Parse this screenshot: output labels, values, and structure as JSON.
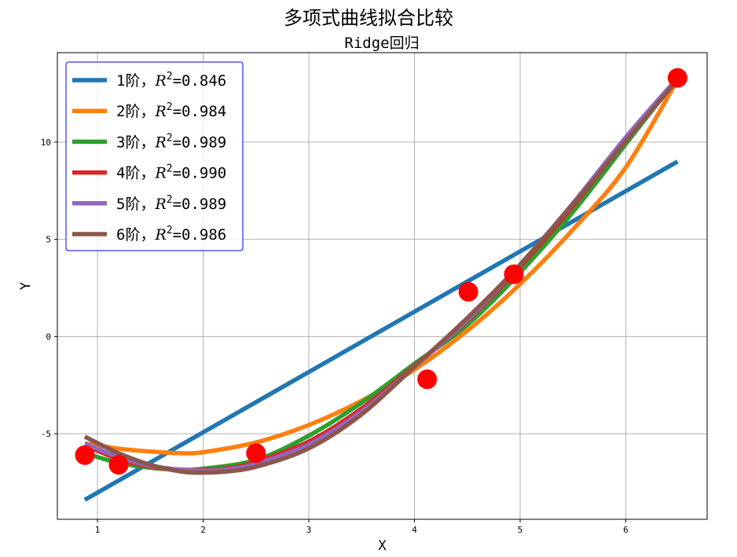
{
  "chart_data": {
    "type": "line",
    "title": "多项式曲线拟合比较",
    "subtitle": "Ridge回归",
    "xlabel": "X",
    "ylabel": "Y",
    "xlim": [
      0.62,
      6.77
    ],
    "ylim": [
      -9.4,
      14.6
    ],
    "xticks": [
      1,
      2,
      3,
      4,
      5,
      6
    ],
    "yticks": [
      -5,
      0,
      5,
      10
    ],
    "grid": true,
    "legend_position": "upper-left",
    "points": {
      "color": "#ff0000",
      "x": [
        0.88,
        1.2,
        2.5,
        4.12,
        4.51,
        4.94,
        6.49
      ],
      "y": [
        -6.1,
        -6.6,
        -6.0,
        -2.2,
        2.3,
        3.2,
        13.3
      ]
    },
    "series": [
      {
        "name": "1阶，",
        "r2": "0.846",
        "color": "#1f77b4",
        "x": [
          0.88,
          6.49
        ],
        "y": [
          -8.4,
          9.0
        ]
      },
      {
        "name": "2阶，",
        "r2": "0.984",
        "color": "#ff7f0e",
        "x": [
          0.88,
          1.25,
          1.6,
          1.8,
          2.0,
          2.5,
          3.0,
          3.5,
          4.0,
          4.5,
          5.0,
          5.5,
          6.0,
          6.49
        ],
        "y": [
          -5.5,
          -5.8,
          -5.95,
          -6.0,
          -5.95,
          -5.45,
          -4.55,
          -3.3,
          -1.7,
          0.3,
          2.7,
          5.5,
          8.7,
          13.2
        ]
      },
      {
        "name": "3阶，",
        "r2": "0.989",
        "color": "#2ca02c",
        "x": [
          0.88,
          1.2,
          1.5,
          1.8,
          2.0,
          2.5,
          3.0,
          3.5,
          4.0,
          4.5,
          5.0,
          5.5,
          6.0,
          6.49
        ],
        "y": [
          -6.0,
          -6.5,
          -6.75,
          -6.85,
          -6.8,
          -6.35,
          -5.1,
          -3.4,
          -1.4,
          0.6,
          3.3,
          6.4,
          9.9,
          13.3
        ]
      },
      {
        "name": "4阶，",
        "r2": "0.990",
        "color": "#d62728",
        "x": [
          0.88,
          1.2,
          1.5,
          1.8,
          2.0,
          2.2,
          2.5,
          3.0,
          3.5,
          4.0,
          4.5,
          5.0,
          5.5,
          6.0,
          6.49
        ],
        "y": [
          -5.6,
          -6.3,
          -6.7,
          -6.85,
          -6.85,
          -6.8,
          -6.45,
          -5.4,
          -3.7,
          -1.5,
          0.8,
          3.6,
          6.7,
          10.1,
          13.3
        ]
      },
      {
        "name": "5阶，",
        "r2": "0.989",
        "color": "#9467bd",
        "x": [
          0.88,
          1.2,
          1.5,
          1.8,
          2.0,
          2.2,
          2.5,
          3.0,
          3.5,
          4.0,
          4.5,
          5.0,
          5.5,
          6.0,
          6.49
        ],
        "y": [
          -5.5,
          -6.2,
          -6.65,
          -6.85,
          -6.9,
          -6.85,
          -6.55,
          -5.55,
          -3.85,
          -1.55,
          0.85,
          3.7,
          6.85,
          10.25,
          13.3
        ]
      },
      {
        "name": "6阶，",
        "r2": "0.986",
        "color": "#8c564b",
        "x": [
          0.88,
          1.2,
          1.5,
          1.8,
          2.0,
          2.2,
          2.5,
          3.0,
          3.5,
          4.0,
          4.5,
          5.0,
          5.5,
          6.0,
          6.49
        ],
        "y": [
          -5.15,
          -6.0,
          -6.6,
          -6.95,
          -7.0,
          -6.95,
          -6.7,
          -5.75,
          -4.0,
          -1.55,
          0.95,
          3.7,
          6.8,
          10.05,
          13.2
        ]
      }
    ]
  }
}
